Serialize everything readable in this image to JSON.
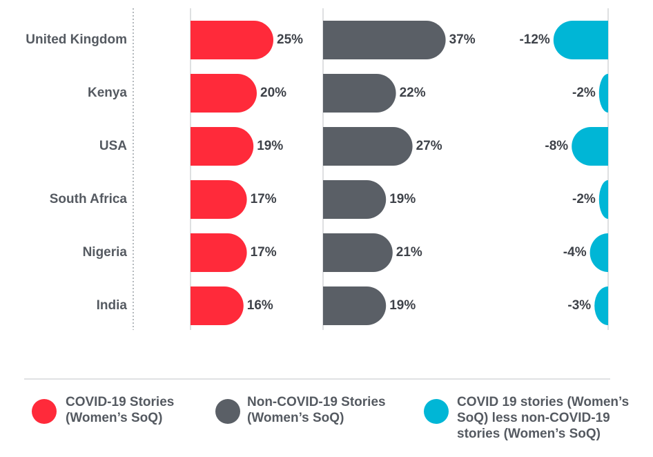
{
  "chart_data": {
    "type": "bar",
    "orientation": "horizontal",
    "categories": [
      "United Kingdom",
      "Kenya",
      "USA",
      "South Africa",
      "Nigeria",
      "India"
    ],
    "series": [
      {
        "name": "COVID-19 Stories (Women's SoQ)",
        "values": [
          25,
          20,
          19,
          17,
          17,
          16
        ],
        "color": "#ff2a3a",
        "labels": [
          "25%",
          "20%",
          "19%",
          "17%",
          "17%",
          "16%"
        ]
      },
      {
        "name": "Non-COVID-19 Stories (Women's SoQ)",
        "values": [
          37,
          22,
          27,
          19,
          21,
          19
        ],
        "color": "#5a5f66",
        "labels": [
          "37%",
          "22%",
          "27%",
          "19%",
          "21%",
          "19%"
        ]
      },
      {
        "name": "COVID 19 stories (Women's SoQ) less non-COVID-19 stories (Women's SoQ)",
        "values": [
          -12,
          -2,
          -8,
          -2,
          -4,
          -3
        ],
        "color": "#00b6d6",
        "labels": [
          "-12%",
          "-2%",
          "-8%",
          "-2%",
          "-4%",
          "-3%"
        ]
      }
    ],
    "legend": {
      "placement": "bottom",
      "entries": [
        {
          "lines": [
            "COVID-19 Stories",
            "(Women’s SoQ)"
          ],
          "color": "#ff2a3a"
        },
        {
          "lines": [
            "Non-COVID-19 Stories",
            "(Women’s SoQ)"
          ],
          "color": "#5a5f66"
        },
        {
          "lines": [
            "COVID 19 stories (Women’s",
            "SoQ) less non-COVID-19",
            "stories (Women’s SoQ)"
          ],
          "color": "#00b6d6"
        }
      ]
    }
  }
}
